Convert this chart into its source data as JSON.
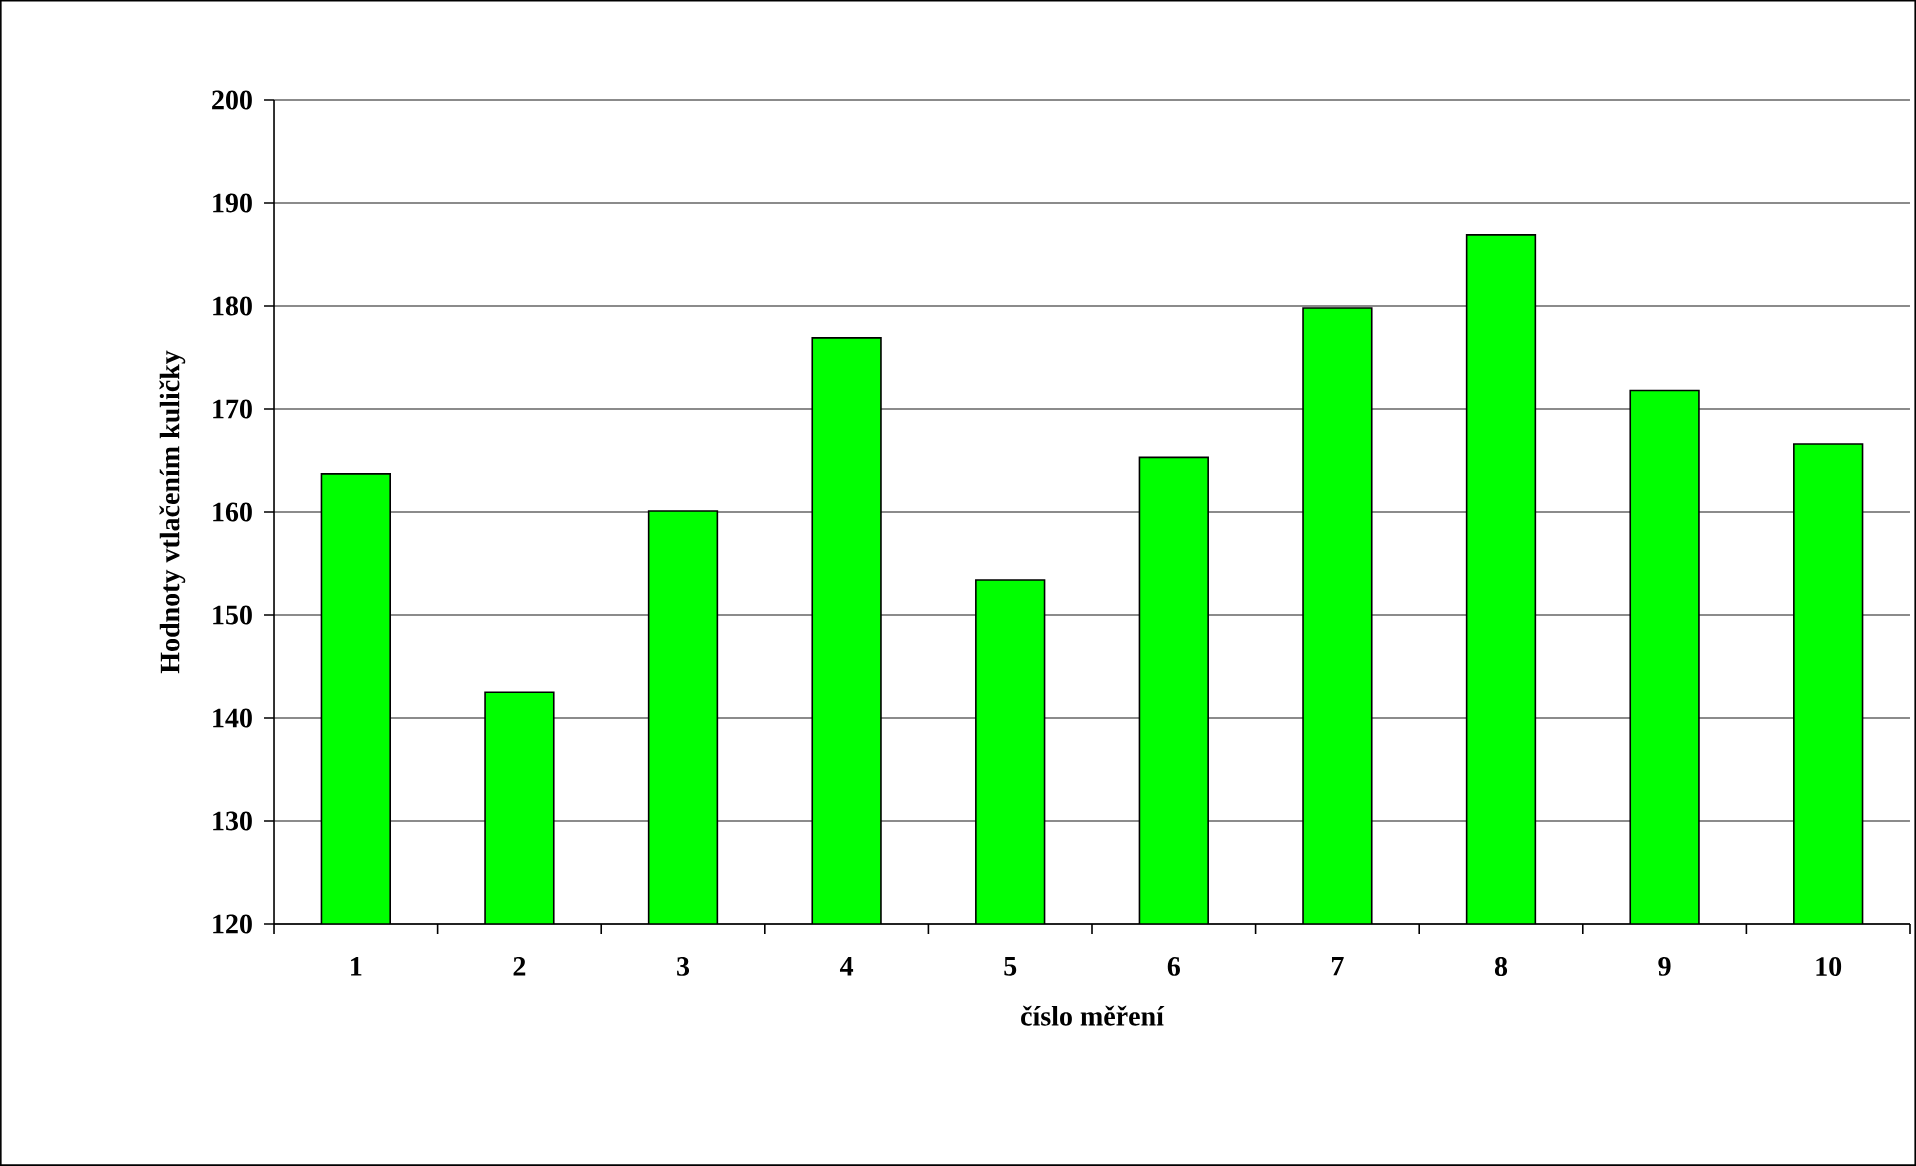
{
  "chart_data": {
    "type": "bar",
    "xlabel": "číslo měření",
    "ylabel": "Hodnoty vtlačením kuličky",
    "categories": [
      "1",
      "2",
      "3",
      "4",
      "5",
      "6",
      "7",
      "8",
      "9",
      "10"
    ],
    "values": [
      163.7,
      142.5,
      160.1,
      176.9,
      153.4,
      165.3,
      179.8,
      186.9,
      171.8,
      166.6
    ],
    "color": "#00ff00",
    "ylim": [
      120,
      200
    ],
    "yticks": [
      120,
      130,
      140,
      150,
      160,
      170,
      180,
      190,
      200
    ],
    "grid": "y"
  }
}
